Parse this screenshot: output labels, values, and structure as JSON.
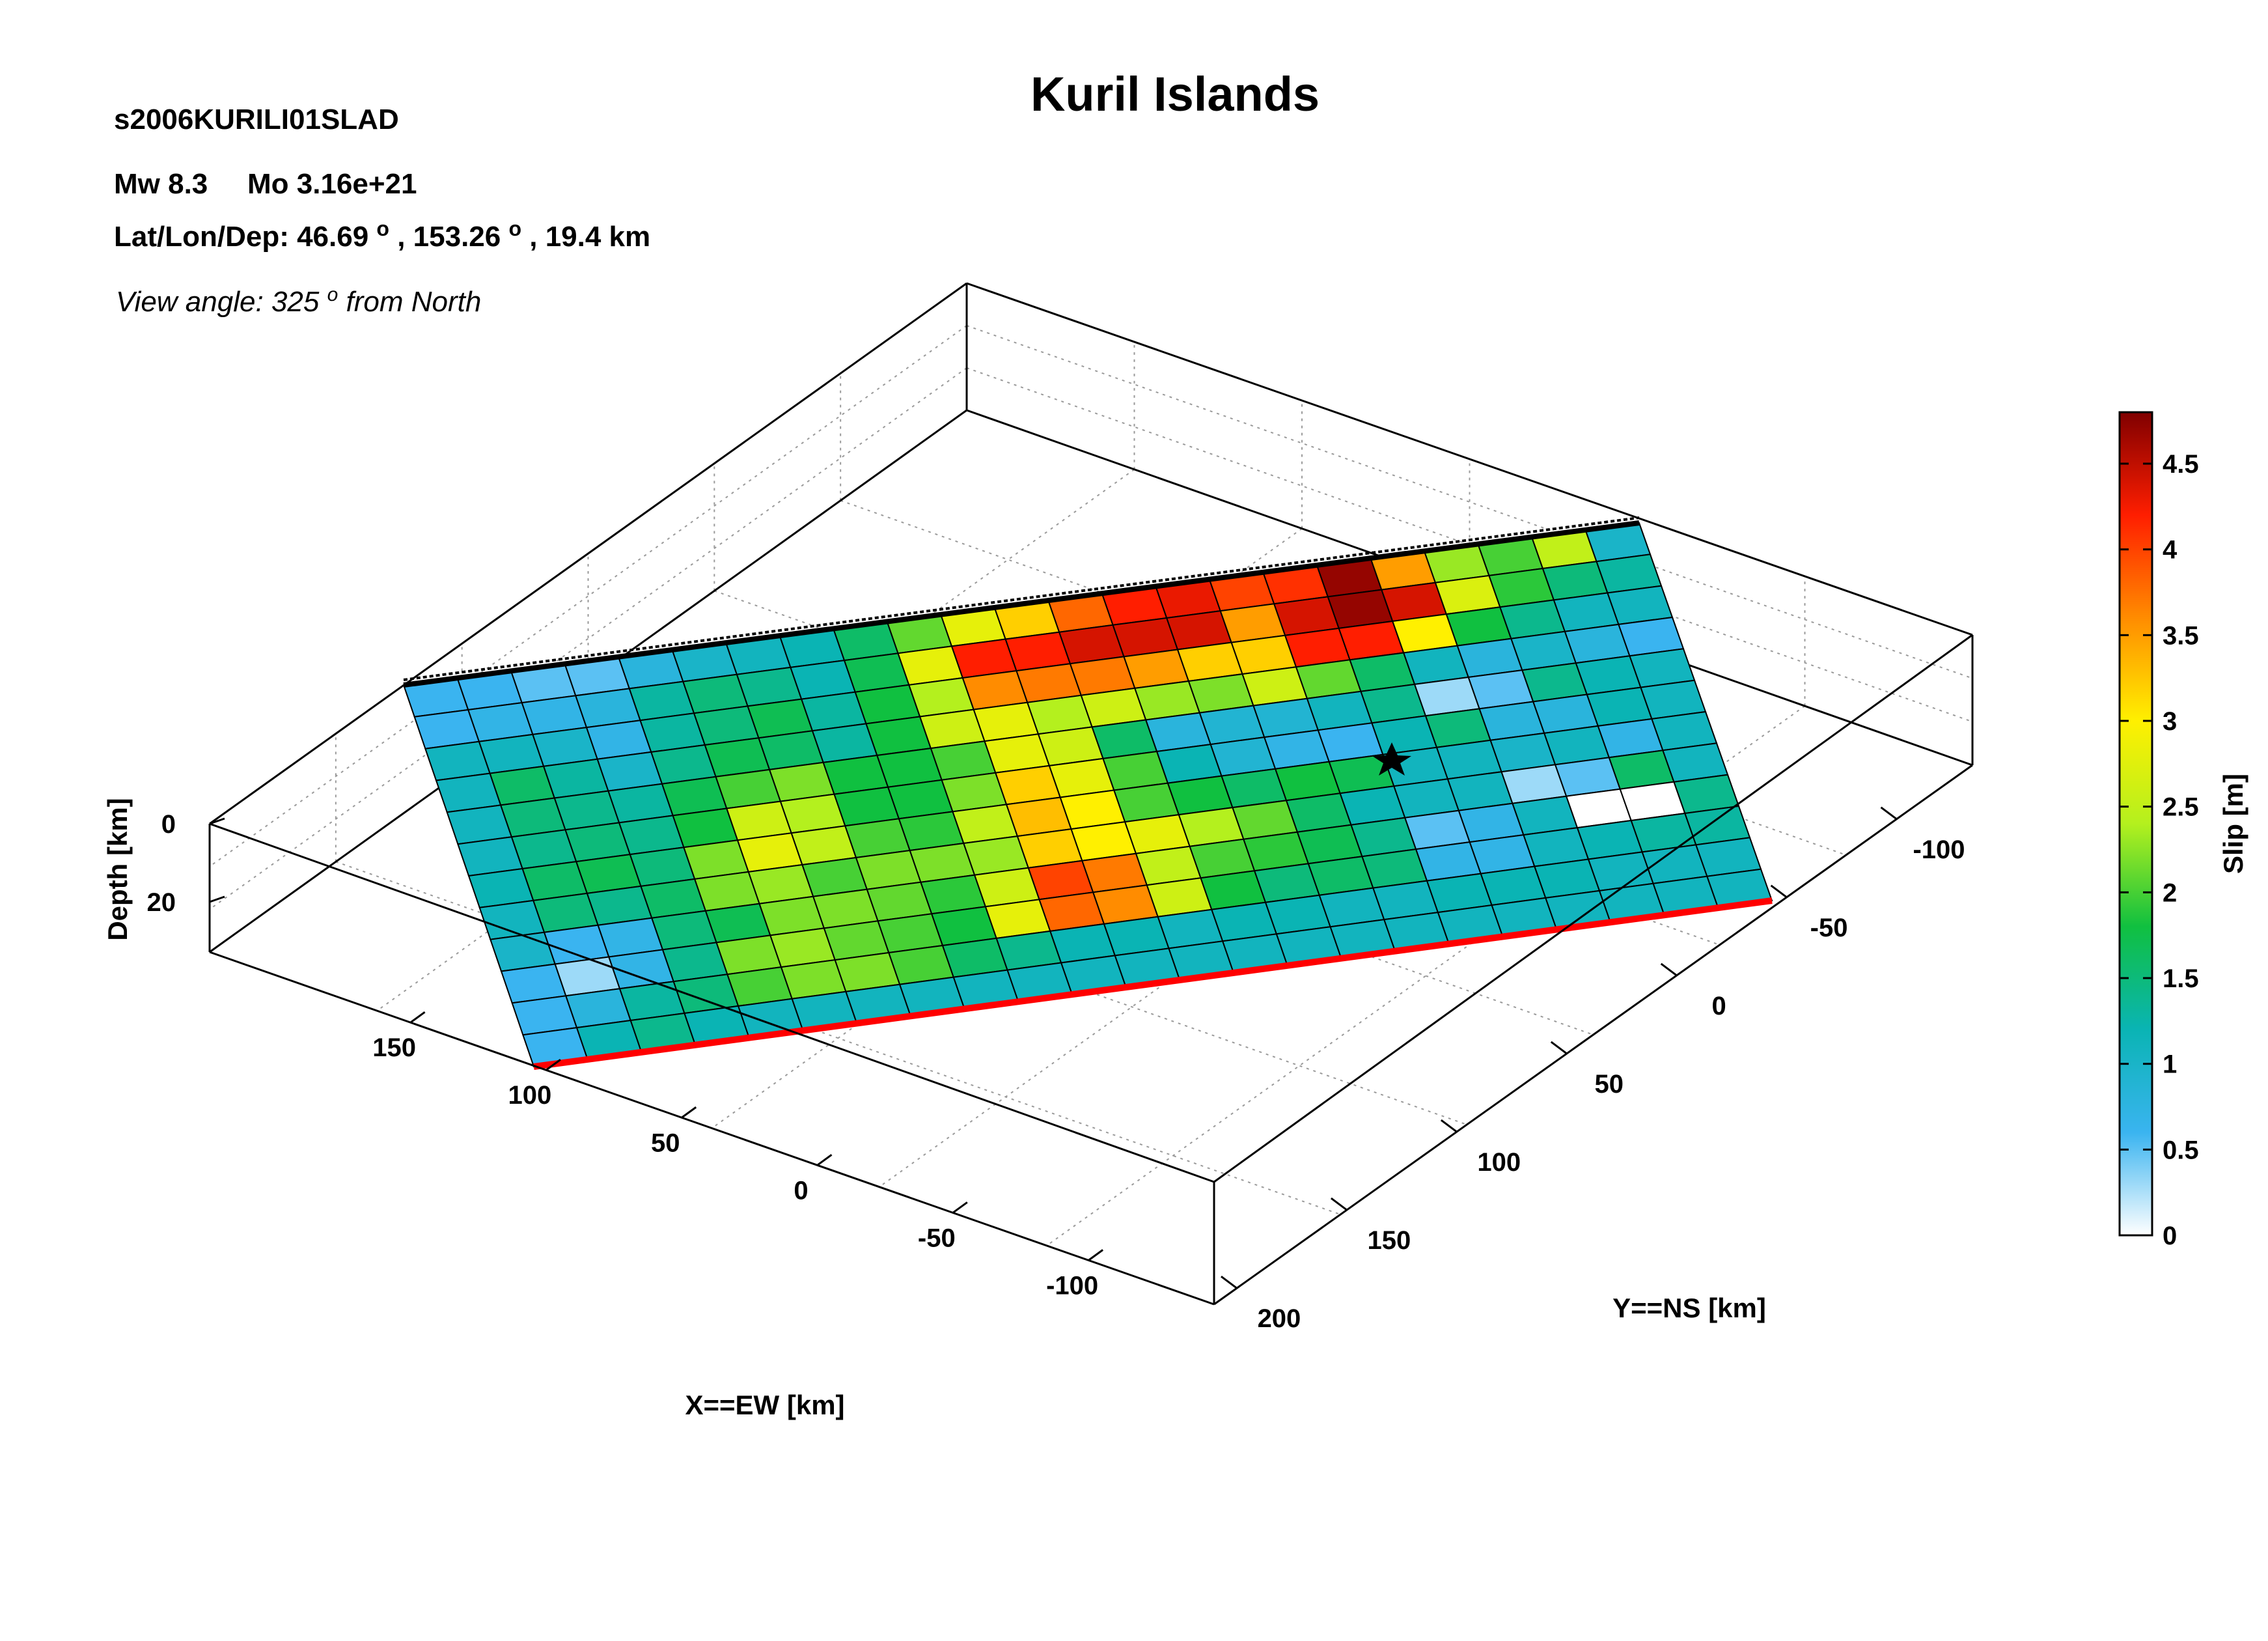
{
  "header": {
    "title": "Kuril Islands",
    "event_id": "s2006KURILI01SLAD",
    "mw_label": "Mw 8.3",
    "mo_label": "Mo 3.16e+21",
    "location_prefix": "Lat/Lon/Dep: 46.69",
    "location_mid": ", 153.26",
    "location_suffix": ", 19.4 km",
    "degree_mark": "o",
    "view_prefix": "View angle: 325",
    "view_suffix": " from North"
  },
  "chart_data": {
    "type": "heatmap",
    "title": "Kuril Islands",
    "xlabel": "X==EW [km]",
    "ylabel": "Y==NS [km]",
    "zlabel": "Depth [km]",
    "colorbar_label": "Slip [m]",
    "x_ticks": [
      "150",
      "100",
      "50",
      "0",
      "-50",
      "-100"
    ],
    "y_ticks": [
      "-100",
      "-50",
      "0",
      "50",
      "100",
      "150",
      "200"
    ],
    "z_ticks": [
      "0",
      "20"
    ],
    "colorbar_ticks": [
      "0",
      "0.5",
      "1",
      "1.5",
      "2",
      "2.5",
      "3",
      "3.5",
      "4",
      "4.5"
    ],
    "colorbar_range": [
      0,
      4.8
    ],
    "colormap": [
      "#ffffff",
      "#3ab4f0",
      "#0ab4b4",
      "#10c040",
      "#b4f01e",
      "#fff000",
      "#ff8c00",
      "#ff1e00",
      "#800000"
    ],
    "hypocenter_marker": "star",
    "top_edge_color": "#000000",
    "bottom_edge_color": "#ff0000",
    "slip_rows_updip_to_downdip": [
      [
        0.6,
        0.6,
        0.5,
        0.5,
        0.8,
        1.0,
        1.1,
        1.2,
        1.6,
        2.1,
        2.8,
        3.2,
        3.8,
        4.2,
        4.3,
        4.0,
        4.1,
        4.7,
        3.5,
        2.3,
        2.0,
        2.5,
        1.0
      ],
      [
        0.6,
        0.7,
        0.7,
        0.8,
        1.3,
        1.5,
        1.4,
        1.2,
        1.7,
        2.8,
        4.2,
        4.2,
        4.4,
        4.4,
        4.4,
        3.5,
        4.4,
        4.7,
        4.4,
        2.7,
        1.9,
        1.5,
        1.3
      ],
      [
        1.1,
        1.1,
        1.0,
        0.7,
        1.3,
        1.5,
        1.7,
        1.3,
        1.8,
        2.4,
        3.6,
        3.7,
        3.7,
        3.5,
        3.2,
        3.2,
        4.2,
        4.2,
        3.0,
        1.8,
        1.4,
        1.1,
        1.1
      ],
      [
        1.1,
        1.6,
        1.3,
        1.0,
        1.4,
        1.7,
        1.6,
        1.3,
        1.8,
        2.6,
        2.8,
        2.4,
        2.6,
        2.3,
        2.2,
        2.6,
        2.1,
        1.6,
        1.1,
        0.8,
        1.0,
        0.8,
        0.6
      ],
      [
        1.1,
        1.5,
        1.4,
        1.3,
        1.7,
        2.0,
        2.2,
        1.8,
        1.8,
        2.0,
        2.8,
        2.6,
        1.6,
        0.8,
        0.9,
        0.9,
        1.1,
        1.4,
        0.3,
        0.5,
        1.4,
        1.2,
        1.1
      ],
      [
        1.1,
        1.4,
        1.5,
        1.4,
        1.8,
        2.6,
        2.4,
        1.8,
        1.8,
        2.2,
        3.2,
        2.8,
        2.0,
        1.2,
        0.9,
        0.7,
        0.6,
        1.2,
        1.5,
        0.8,
        0.8,
        1.2,
        1.1
      ],
      [
        1.2,
        1.6,
        1.7,
        1.5,
        2.2,
        2.8,
        2.5,
        2.0,
        1.9,
        2.5,
        3.3,
        3.0,
        2.0,
        1.8,
        1.6,
        1.8,
        1.7,
        1.1,
        1.1,
        1.0,
        1.1,
        0.7,
        1.1
      ],
      [
        1.1,
        1.5,
        1.4,
        1.6,
        2.2,
        2.3,
        2.0,
        2.2,
        2.2,
        2.3,
        3.2,
        3.0,
        2.8,
        2.4,
        2.1,
        1.6,
        1.2,
        1.1,
        1.1,
        0.3,
        0.5,
        1.6,
        1.1
      ],
      [
        1.0,
        0.6,
        0.7,
        1.5,
        1.7,
        2.2,
        2.2,
        2.1,
        1.9,
        2.6,
        4.0,
        3.7,
        2.5,
        2.0,
        1.9,
        1.7,
        1.4,
        0.5,
        0.7,
        1.1,
        0.0,
        0.0,
        1.4
      ],
      [
        0.6,
        0.3,
        0.7,
        1.4,
        2.2,
        2.3,
        2.1,
        2.0,
        1.8,
        2.8,
        3.8,
        3.6,
        2.6,
        1.8,
        1.5,
        1.6,
        1.5,
        0.7,
        0.7,
        1.1,
        1.2,
        1.3,
        1.3
      ],
      [
        0.6,
        0.8,
        1.3,
        1.5,
        2.0,
        2.2,
        2.2,
        2.0,
        1.6,
        1.4,
        1.2,
        1.2,
        1.1,
        1.2,
        1.2,
        1.1,
        1.1,
        1.2,
        1.2,
        1.2,
        1.1,
        1.1,
        1.1
      ],
      [
        0.6,
        1.2,
        1.4,
        1.2,
        1.1,
        1.1,
        1.1,
        1.1,
        1.1,
        1.1,
        1.1,
        1.1,
        1.1,
        1.1,
        1.1,
        1.1,
        1.1,
        1.1,
        1.1,
        1.1,
        1.1,
        1.1,
        1.1
      ]
    ]
  }
}
